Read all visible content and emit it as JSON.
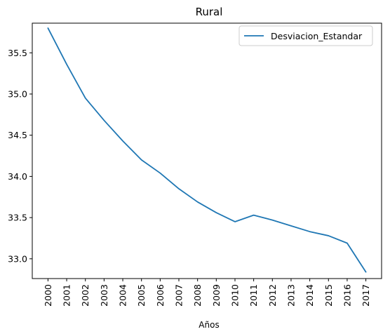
{
  "chart_data": {
    "type": "line",
    "title": "Rural",
    "xlabel": "Años",
    "ylabel": "",
    "categories": [
      "2000",
      "2001",
      "2002",
      "2003",
      "2004",
      "2005",
      "2006",
      "2007",
      "2008",
      "2009",
      "2010",
      "2011",
      "2012",
      "2013",
      "2014",
      "2015",
      "2016",
      "2017"
    ],
    "series": [
      {
        "name": "Desviacion_Estandar",
        "color": "#1f77b4",
        "values": [
          35.8,
          35.36,
          34.95,
          34.68,
          34.43,
          34.2,
          34.04,
          33.85,
          33.69,
          33.56,
          33.45,
          33.53,
          33.47,
          33.4,
          33.33,
          33.28,
          33.19,
          32.84
        ]
      }
    ],
    "ylim": [
      32.76,
      35.86
    ],
    "yticks": [
      33.0,
      33.5,
      34.0,
      34.5,
      35.0,
      35.5
    ],
    "ytick_labels": [
      "33.0",
      "33.5",
      "34.0",
      "34.5",
      "35.0",
      "35.5"
    ],
    "grid": false,
    "legend_position": "top-right"
  }
}
